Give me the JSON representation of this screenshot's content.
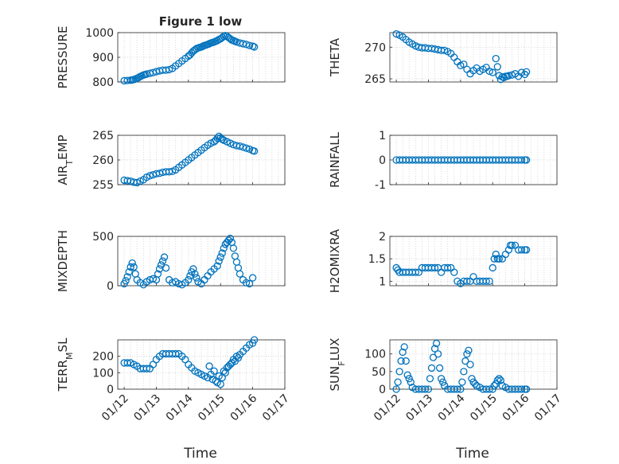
{
  "figure": {
    "title": "Figure 1 low",
    "xlabel": "Time"
  },
  "chart_data": [
    {
      "type": "scatter",
      "ylabel": "PRESSURE",
      "ylim": [
        800,
        1000
      ],
      "yticks": [
        "800",
        "900",
        "1000"
      ],
      "grid": true,
      "x": [
        0.0,
        0.1,
        0.2,
        0.25,
        0.3,
        0.35,
        0.4,
        0.45,
        0.5,
        0.55,
        0.6,
        0.65,
        0.7,
        0.8,
        0.9,
        1.0,
        1.1,
        1.2,
        1.3,
        1.4,
        1.5,
        1.6,
        1.7,
        1.8,
        1.9,
        2.0,
        2.05,
        2.1,
        2.15,
        2.2,
        2.25,
        2.3,
        2.35,
        2.4,
        2.45,
        2.5,
        2.55,
        2.6,
        2.65,
        2.7,
        2.75,
        2.8,
        2.85,
        2.9,
        2.95,
        3.0,
        3.05,
        3.1,
        3.15,
        3.2,
        3.25,
        3.3,
        3.35,
        3.4,
        3.45,
        3.5,
        3.6,
        3.7,
        3.8,
        3.9,
        4.0,
        4.05
      ],
      "y": [
        805,
        806,
        807,
        808,
        810,
        812,
        815,
        818,
        822,
        825,
        828,
        830,
        832,
        835,
        838,
        842,
        845,
        848,
        848,
        850,
        855,
        865,
        875,
        885,
        895,
        905,
        910,
        918,
        925,
        930,
        935,
        938,
        940,
        942,
        945,
        948,
        950,
        952,
        955,
        958,
        960,
        962,
        965,
        968,
        972,
        975,
        980,
        985,
        988,
        985,
        980,
        975,
        970,
        968,
        965,
        962,
        958,
        955,
        952,
        948,
        945,
        942
      ]
    },
    {
      "type": "scatter",
      "ylabel": "THETA",
      "ylim": [
        264.5,
        272.3
      ],
      "yticks": [
        "265",
        "270"
      ],
      "grid": true,
      "x": [
        0.0,
        0.1,
        0.2,
        0.3,
        0.4,
        0.5,
        0.6,
        0.7,
        0.8,
        0.9,
        1.0,
        1.1,
        1.2,
        1.3,
        1.4,
        1.5,
        1.6,
        1.7,
        1.8,
        1.9,
        2.0,
        2.1,
        2.2,
        2.3,
        2.4,
        2.5,
        2.6,
        2.7,
        2.8,
        2.9,
        3.0,
        3.1,
        3.15,
        3.2,
        3.25,
        3.3,
        3.35,
        3.4,
        3.45,
        3.5,
        3.6,
        3.7,
        3.8,
        3.9,
        4.0,
        4.05
      ],
      "y": [
        272.1,
        271.9,
        271.6,
        271.2,
        270.8,
        270.5,
        270.2,
        270.0,
        269.9,
        269.9,
        269.8,
        269.8,
        269.7,
        269.6,
        269.5,
        269.5,
        269.3,
        269.0,
        268.4,
        267.7,
        267.1,
        267.3,
        266.5,
        265.8,
        266.3,
        266.7,
        266.2,
        266.5,
        266.8,
        266.2,
        266.0,
        268.2,
        266.9,
        265.5,
        264.9,
        265.3,
        265.2,
        265.4,
        265.4,
        265.5,
        265.6,
        265.8,
        265.4,
        266.0,
        265.7,
        266.1
      ]
    },
    {
      "type": "scatter",
      "ylabel": "AIR_TEMP",
      "ylim": [
        255,
        265
      ],
      "yticks": [
        "255",
        "260",
        "265"
      ],
      "grid": true,
      "x": [
        0.0,
        0.1,
        0.2,
        0.3,
        0.4,
        0.5,
        0.6,
        0.7,
        0.8,
        0.9,
        1.0,
        1.1,
        1.2,
        1.3,
        1.4,
        1.5,
        1.6,
        1.7,
        1.8,
        1.9,
        2.0,
        2.1,
        2.2,
        2.3,
        2.4,
        2.5,
        2.6,
        2.7,
        2.8,
        2.85,
        2.9,
        2.95,
        3.0,
        3.05,
        3.1,
        3.2,
        3.3,
        3.4,
        3.5,
        3.6,
        3.7,
        3.8,
        3.9,
        4.0,
        4.05
      ],
      "y": [
        255.9,
        255.8,
        255.7,
        255.5,
        255.4,
        255.7,
        256.0,
        256.5,
        256.8,
        257.0,
        257.2,
        257.3,
        257.5,
        257.6,
        257.6,
        257.7,
        258.0,
        258.5,
        259.0,
        259.5,
        260.0,
        260.5,
        261.0,
        261.5,
        262.0,
        262.5,
        263.0,
        263.4,
        263.7,
        264.0,
        264.4,
        264.8,
        264.5,
        264.2,
        264.0,
        263.7,
        263.4,
        263.1,
        262.9,
        262.8,
        262.6,
        262.4,
        262.2,
        261.9,
        261.8
      ]
    },
    {
      "type": "scatter",
      "ylabel": "RAINFALL",
      "ylim": [
        -1,
        1
      ],
      "yticks": [
        "-1",
        "0",
        "1"
      ],
      "grid": true,
      "x": [
        0.0,
        0.1,
        0.2,
        0.3,
        0.4,
        0.5,
        0.6,
        0.7,
        0.8,
        0.9,
        1.0,
        1.1,
        1.2,
        1.3,
        1.4,
        1.5,
        1.6,
        1.7,
        1.8,
        1.9,
        2.0,
        2.1,
        2.2,
        2.3,
        2.4,
        2.5,
        2.6,
        2.7,
        2.8,
        2.9,
        3.0,
        3.1,
        3.2,
        3.3,
        3.4,
        3.5,
        3.6,
        3.7,
        3.8,
        3.9,
        4.0,
        4.05
      ],
      "y": [
        0,
        0,
        0,
        0,
        0,
        0,
        0,
        0,
        0,
        0,
        0,
        0,
        0,
        0,
        0,
        0,
        0,
        0,
        0,
        0,
        0,
        0,
        0,
        0,
        0,
        0,
        0,
        0,
        0,
        0,
        0,
        0,
        0,
        0,
        0,
        0,
        0,
        0,
        0,
        0,
        0,
        0
      ]
    },
    {
      "type": "scatter",
      "ylabel": "MIXDEPTH",
      "ylim": [
        0,
        500
      ],
      "yticks": [
        "0",
        "500"
      ],
      "grid": true,
      "x": [
        0.0,
        0.05,
        0.1,
        0.15,
        0.2,
        0.25,
        0.3,
        0.35,
        0.4,
        0.5,
        0.6,
        0.7,
        0.8,
        0.9,
        1.0,
        1.05,
        1.1,
        1.15,
        1.2,
        1.25,
        1.3,
        1.4,
        1.5,
        1.6,
        1.7,
        1.8,
        1.9,
        2.0,
        2.05,
        2.1,
        2.15,
        2.2,
        2.25,
        2.3,
        2.4,
        2.5,
        2.6,
        2.7,
        2.8,
        2.9,
        2.95,
        3.0,
        3.05,
        3.1,
        3.15,
        3.2,
        3.25,
        3.3,
        3.35,
        3.4,
        3.45,
        3.5,
        3.55,
        3.6,
        3.7,
        3.8,
        3.9,
        4.0
      ],
      "y": [
        20,
        50,
        90,
        140,
        190,
        230,
        190,
        120,
        60,
        30,
        10,
        40,
        60,
        70,
        60,
        120,
        170,
        210,
        250,
        290,
        180,
        60,
        30,
        40,
        20,
        10,
        30,
        60,
        100,
        140,
        170,
        120,
        80,
        40,
        20,
        60,
        100,
        140,
        170,
        200,
        250,
        290,
        330,
        380,
        420,
        440,
        460,
        480,
        440,
        380,
        300,
        240,
        180,
        120,
        60,
        30,
        20,
        80
      ]
    },
    {
      "type": "scatter",
      "ylabel": "H2OMIXRA",
      "ylim": [
        0.9,
        2
      ],
      "yticks": [
        "1",
        "1.5",
        "2"
      ],
      "grid": true,
      "x": [
        0.0,
        0.05,
        0.1,
        0.2,
        0.3,
        0.4,
        0.5,
        0.6,
        0.7,
        0.8,
        0.9,
        1.0,
        1.1,
        1.2,
        1.3,
        1.4,
        1.5,
        1.6,
        1.7,
        1.8,
        1.9,
        2.0,
        2.1,
        2.2,
        2.3,
        2.4,
        2.5,
        2.6,
        2.7,
        2.8,
        2.9,
        3.0,
        3.05,
        3.1,
        3.15,
        3.2,
        3.3,
        3.4,
        3.5,
        3.55,
        3.6,
        3.7,
        3.8,
        3.9,
        4.0,
        4.05
      ],
      "y": [
        1.3,
        1.25,
        1.2,
        1.2,
        1.2,
        1.2,
        1.2,
        1.2,
        1.2,
        1.3,
        1.3,
        1.3,
        1.3,
        1.3,
        1.3,
        1.2,
        1.3,
        1.3,
        1.3,
        1.2,
        1.0,
        0.95,
        1.0,
        1.0,
        1.0,
        1.1,
        1.0,
        1.0,
        1.0,
        1.0,
        1.0,
        1.3,
        1.5,
        1.6,
        1.5,
        1.5,
        1.5,
        1.6,
        1.7,
        1.8,
        1.8,
        1.8,
        1.7,
        1.7,
        1.7,
        1.7
      ]
    },
    {
      "type": "scatter",
      "ylabel": "TERR_MSL",
      "ylim": [
        0,
        300
      ],
      "yticks": [
        "0",
        "100",
        "200"
      ],
      "grid": true,
      "x": [
        0.0,
        0.1,
        0.2,
        0.3,
        0.4,
        0.5,
        0.6,
        0.7,
        0.8,
        0.9,
        1.0,
        1.1,
        1.2,
        1.3,
        1.4,
        1.5,
        1.6,
        1.7,
        1.8,
        1.9,
        2.0,
        2.1,
        2.2,
        2.3,
        2.4,
        2.5,
        2.6,
        2.65,
        2.7,
        2.75,
        2.8,
        2.85,
        2.9,
        2.95,
        3.0,
        3.05,
        3.1,
        3.15,
        3.2,
        3.25,
        3.3,
        3.35,
        3.4,
        3.45,
        3.5,
        3.55,
        3.6,
        3.7,
        3.8,
        3.9,
        4.0,
        4.05
      ],
      "y": [
        160,
        160,
        160,
        150,
        140,
        125,
        125,
        125,
        125,
        150,
        180,
        200,
        215,
        215,
        215,
        215,
        215,
        215,
        200,
        180,
        150,
        130,
        110,
        100,
        90,
        80,
        70,
        140,
        90,
        60,
        110,
        50,
        40,
        80,
        30,
        70,
        110,
        100,
        130,
        140,
        150,
        160,
        180,
        170,
        200,
        190,
        210,
        230,
        250,
        270,
        280,
        300
      ]
    },
    {
      "type": "scatter",
      "ylabel": "SUN_FLUX",
      "ylim": [
        0,
        140
      ],
      "yticks": [
        "0",
        "50",
        "100"
      ],
      "grid": true,
      "x": [
        0.0,
        0.05,
        0.1,
        0.15,
        0.2,
        0.25,
        0.3,
        0.35,
        0.4,
        0.45,
        0.5,
        0.6,
        0.7,
        0.8,
        0.9,
        1.0,
        1.05,
        1.1,
        1.15,
        1.2,
        1.25,
        1.3,
        1.35,
        1.4,
        1.45,
        1.5,
        1.6,
        1.7,
        1.8,
        1.9,
        2.0,
        2.05,
        2.1,
        2.15,
        2.2,
        2.25,
        2.3,
        2.35,
        2.4,
        2.45,
        2.5,
        2.6,
        2.7,
        2.8,
        2.9,
        3.0,
        3.05,
        3.1,
        3.15,
        3.2,
        3.25,
        3.3,
        3.4,
        3.5,
        3.6,
        3.7,
        3.8,
        3.9,
        4.0,
        4.05
      ],
      "y": [
        0,
        20,
        50,
        80,
        105,
        120,
        80,
        40,
        30,
        20,
        5,
        0,
        0,
        0,
        0,
        0,
        30,
        60,
        90,
        115,
        130,
        100,
        60,
        30,
        20,
        10,
        0,
        0,
        0,
        0,
        0,
        20,
        50,
        80,
        100,
        110,
        70,
        30,
        20,
        15,
        10,
        5,
        0,
        0,
        0,
        0,
        10,
        15,
        25,
        30,
        25,
        10,
        5,
        0,
        0,
        0,
        0,
        0,
        0,
        0
      ]
    }
  ],
  "xaxis": {
    "range": [
      -0.2,
      5.0
    ],
    "ticks": [
      "01/12",
      "01/13",
      "01/14",
      "01/15",
      "01/16",
      "01/17"
    ]
  }
}
